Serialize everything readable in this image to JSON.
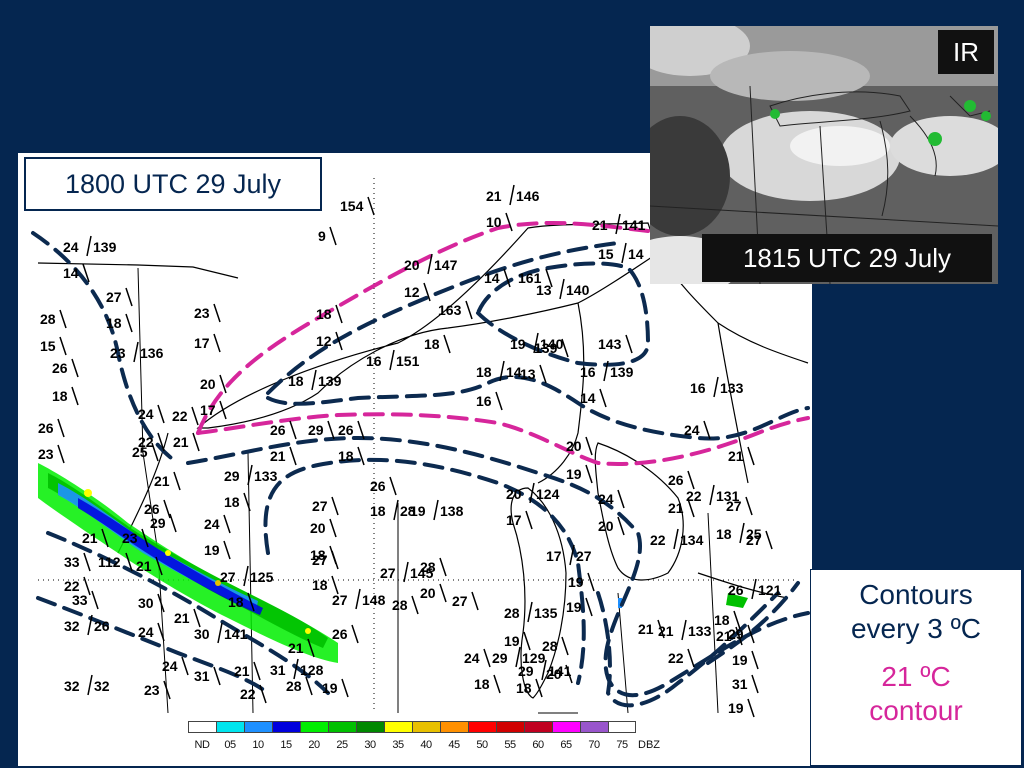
{
  "main_panel": {
    "time_label": "1800 UTC 29 July"
  },
  "ir_panel": {
    "tag": "IR",
    "time_label": "1815 UTC 29 July"
  },
  "contour_legend": {
    "line1": "Contours",
    "line2": "every 3 ºC",
    "highlight_line1": "21 ºC",
    "highlight_line2": "contour"
  },
  "colors": {
    "background": "#052650",
    "contour_dashed": "#0c2a4f",
    "contour_21c": "#d6269b"
  },
  "radar_scale": {
    "unit": "DBZ",
    "bins": [
      {
        "label": "ND",
        "color": "#ffffff"
      },
      {
        "label": "05",
        "color": "#00e5ee"
      },
      {
        "label": "10",
        "color": "#1e90ff"
      },
      {
        "label": "15",
        "color": "#0000dd"
      },
      {
        "label": "20",
        "color": "#00ee00"
      },
      {
        "label": "25",
        "color": "#00c000"
      },
      {
        "label": "30",
        "color": "#008800"
      },
      {
        "label": "35",
        "color": "#ffff00"
      },
      {
        "label": "40",
        "color": "#e8c000"
      },
      {
        "label": "45",
        "color": "#ff9000"
      },
      {
        "label": "50",
        "color": "#ff0000"
      },
      {
        "label": "55",
        "color": "#d00000"
      },
      {
        "label": "60",
        "color": "#c00020"
      },
      {
        "label": "65",
        "color": "#ff00ff"
      },
      {
        "label": "70",
        "color": "#9955cc"
      },
      {
        "label": "75",
        "color": "#ffffff"
      }
    ]
  },
  "stations": [
    {
      "t": "24",
      "p": "139"
    },
    {
      "t": "14",
      "p": ""
    },
    {
      "t": "27",
      "p": ""
    },
    {
      "t": "28",
      "p": ""
    },
    {
      "t": "15",
      "p": ""
    },
    {
      "t": "18",
      "p": ""
    },
    {
      "t": "23",
      "p": "136"
    },
    {
      "t": "26",
      "p": ""
    },
    {
      "t": "18",
      "p": ""
    },
    {
      "t": "23",
      "p": ""
    },
    {
      "t": "17",
      "p": ""
    },
    {
      "t": "20",
      "p": ""
    },
    {
      "t": "17",
      "p": ""
    },
    {
      "t": "24",
      "p": ""
    },
    {
      "t": "22",
      "p": ""
    },
    {
      "t": "26",
      "p": ""
    },
    {
      "t": "22",
      "p": ""
    },
    {
      "t": "21",
      "p": ""
    },
    {
      "t": "23",
      "p": ""
    },
    {
      "t": "25",
      "p": ""
    },
    {
      "t": "154",
      "p": ""
    },
    {
      "t": "9",
      "p": ""
    },
    {
      "t": "21",
      "p": "146"
    },
    {
      "t": "10",
      "p": ""
    },
    {
      "t": "21",
      "p": "141"
    },
    {
      "t": "15",
      "p": "14"
    },
    {
      "t": "20",
      "p": "147"
    },
    {
      "t": "14",
      "p": ""
    },
    {
      "t": "161",
      "p": ""
    },
    {
      "t": "13",
      "p": "140"
    },
    {
      "t": "12",
      "p": ""
    },
    {
      "t": "163",
      "p": ""
    },
    {
      "t": "18",
      "p": ""
    },
    {
      "t": "12",
      "p": ""
    },
    {
      "t": "18",
      "p": ""
    },
    {
      "t": "19",
      "p": "140"
    },
    {
      "t": "139",
      "p": ""
    },
    {
      "t": "143",
      "p": ""
    },
    {
      "t": "16",
      "p": "151"
    },
    {
      "t": "18",
      "p": "139"
    },
    {
      "t": "18",
      "p": "14"
    },
    {
      "t": "13",
      "p": ""
    },
    {
      "t": "16",
      "p": "139"
    },
    {
      "t": "16",
      "p": ""
    },
    {
      "t": "14",
      "p": ""
    },
    {
      "t": "16",
      "p": "133"
    },
    {
      "t": "26",
      "p": ""
    },
    {
      "t": "29",
      "p": ""
    },
    {
      "t": "26",
      "p": ""
    },
    {
      "t": "21",
      "p": ""
    },
    {
      "t": "18",
      "p": ""
    },
    {
      "t": "20",
      "p": ""
    },
    {
      "t": "19",
      "p": ""
    },
    {
      "t": "24",
      "p": ""
    },
    {
      "t": "21",
      "p": ""
    },
    {
      "t": "29",
      "p": "133"
    },
    {
      "t": "18",
      "p": ""
    },
    {
      "t": "27",
      "p": ""
    },
    {
      "t": "26",
      "p": ""
    },
    {
      "t": "18",
      "p": "28"
    },
    {
      "t": "19",
      "p": "138"
    },
    {
      "t": "20",
      "p": "124"
    },
    {
      "t": "17",
      "p": ""
    },
    {
      "t": "24",
      "p": ""
    },
    {
      "t": "20",
      "p": ""
    },
    {
      "t": "26",
      "p": ""
    },
    {
      "t": "22",
      "p": "131"
    },
    {
      "t": "21",
      "p": ""
    },
    {
      "t": "27",
      "p": ""
    },
    {
      "t": "22",
      "p": "134"
    },
    {
      "t": "18",
      "p": "25"
    },
    {
      "t": "27",
      "p": ""
    },
    {
      "t": "20",
      "p": ""
    },
    {
      "t": "18",
      "p": ""
    },
    {
      "t": "27",
      "p": ""
    },
    {
      "t": "28",
      "p": ""
    },
    {
      "t": "27",
      "p": "145"
    },
    {
      "t": "20",
      "p": ""
    },
    {
      "t": "18",
      "p": ""
    },
    {
      "t": "27",
      "p": "148"
    },
    {
      "t": "28",
      "p": ""
    },
    {
      "t": "27",
      "p": ""
    },
    {
      "t": "26",
      "p": ""
    },
    {
      "t": "17",
      "p": "27"
    },
    {
      "t": "19",
      "p": ""
    },
    {
      "t": "19",
      "p": ""
    },
    {
      "t": "26",
      "p": "121"
    },
    {
      "t": "18",
      "p": ""
    },
    {
      "t": "21",
      "p": ""
    },
    {
      "t": "21",
      "p": ""
    },
    {
      "t": "28",
      "p": "135"
    },
    {
      "t": "19",
      "p": ""
    },
    {
      "t": "21",
      "p": "133"
    },
    {
      "t": "29",
      "p": ""
    },
    {
      "t": "24",
      "p": ""
    },
    {
      "t": "29",
      "p": "129"
    },
    {
      "t": "28",
      "p": ""
    },
    {
      "t": "22",
      "p": ""
    },
    {
      "t": "19",
      "p": ""
    },
    {
      "t": "29",
      "p": "141"
    },
    {
      "t": "20",
      "p": ""
    },
    {
      "t": "31",
      "p": ""
    },
    {
      "t": "18",
      "p": ""
    },
    {
      "t": "18",
      "p": ""
    },
    {
      "t": "19",
      "p": ""
    },
    {
      "t": "33",
      "p": ""
    },
    {
      "t": "112",
      "p": ""
    },
    {
      "t": "21",
      "p": ""
    },
    {
      "t": "22",
      "p": ""
    },
    {
      "t": "33",
      "p": ""
    },
    {
      "t": "30",
      "p": ""
    },
    {
      "t": "32",
      "p": "26"
    },
    {
      "t": "24",
      "p": ""
    },
    {
      "t": "24",
      "p": ""
    },
    {
      "t": "30",
      "p": "141"
    },
    {
      "t": "31",
      "p": ""
    },
    {
      "t": "21",
      "p": ""
    },
    {
      "t": "31",
      "p": "128"
    },
    {
      "t": "21",
      "p": ""
    },
    {
      "t": "28",
      "p": ""
    },
    {
      "t": "19",
      "p": ""
    },
    {
      "t": "22",
      "p": ""
    },
    {
      "t": "32",
      "p": "32"
    },
    {
      "t": "23",
      "p": ""
    },
    {
      "t": "21",
      "p": ""
    },
    {
      "t": "26",
      "p": ""
    },
    {
      "t": "29",
      "p": ""
    },
    {
      "t": "21",
      "p": ""
    },
    {
      "t": "23",
      "p": ""
    },
    {
      "t": "24",
      "p": ""
    },
    {
      "t": "19",
      "p": ""
    },
    {
      "t": "27",
      "p": "125"
    },
    {
      "t": "18",
      "p": ""
    },
    {
      "t": "21",
      "p": ""
    }
  ]
}
